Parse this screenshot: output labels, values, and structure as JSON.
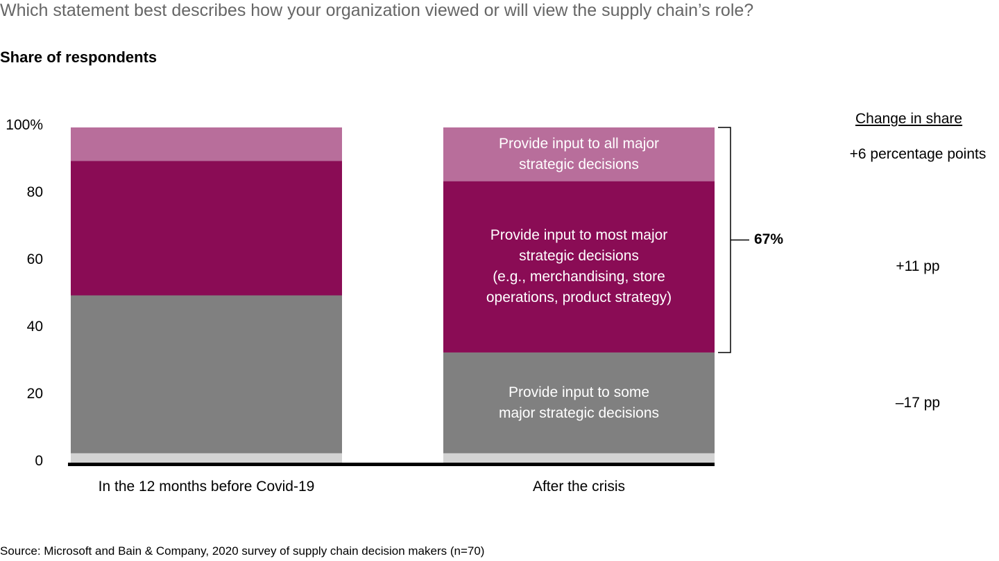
{
  "chart_data": {
    "type": "bar",
    "stacked": true,
    "title": "Which statement best describes how your organization viewed or will view the supply chain’s role?",
    "subtitle": "Share of respondents",
    "categories": [
      "In the 12 months before Covid-19",
      "After the crisis"
    ],
    "ylim": [
      0,
      100
    ],
    "yticks": [
      0,
      20,
      40,
      60,
      80,
      {
        "value": 100,
        "label": "100%"
      }
    ],
    "series": [
      {
        "color": "#d3d3d3",
        "values": [
          3,
          3
        ]
      },
      {
        "name": "Provide input to some\nmajor strategic decisions",
        "color": "#808080",
        "values": [
          47,
          30
        ],
        "change": "–17 pp"
      },
      {
        "name": "Provide input to most major\nstrategic decisions\n(e.g., merchandising, store\noperations, product strategy)",
        "color": "#8a0c55",
        "values": [
          40,
          51
        ],
        "change": "+11 pp"
      },
      {
        "name": "Provide input to all major\nstrategic decisions",
        "color": "#b86e9b",
        "values": [
          10,
          16
        ],
        "change": "+6 percentage points"
      }
    ],
    "change_header": "Change in share",
    "bracket_label": "67%",
    "source": "Source: Microsoft and Bain & Company, 2020 survey of supply chain decision makers (n=70)"
  }
}
